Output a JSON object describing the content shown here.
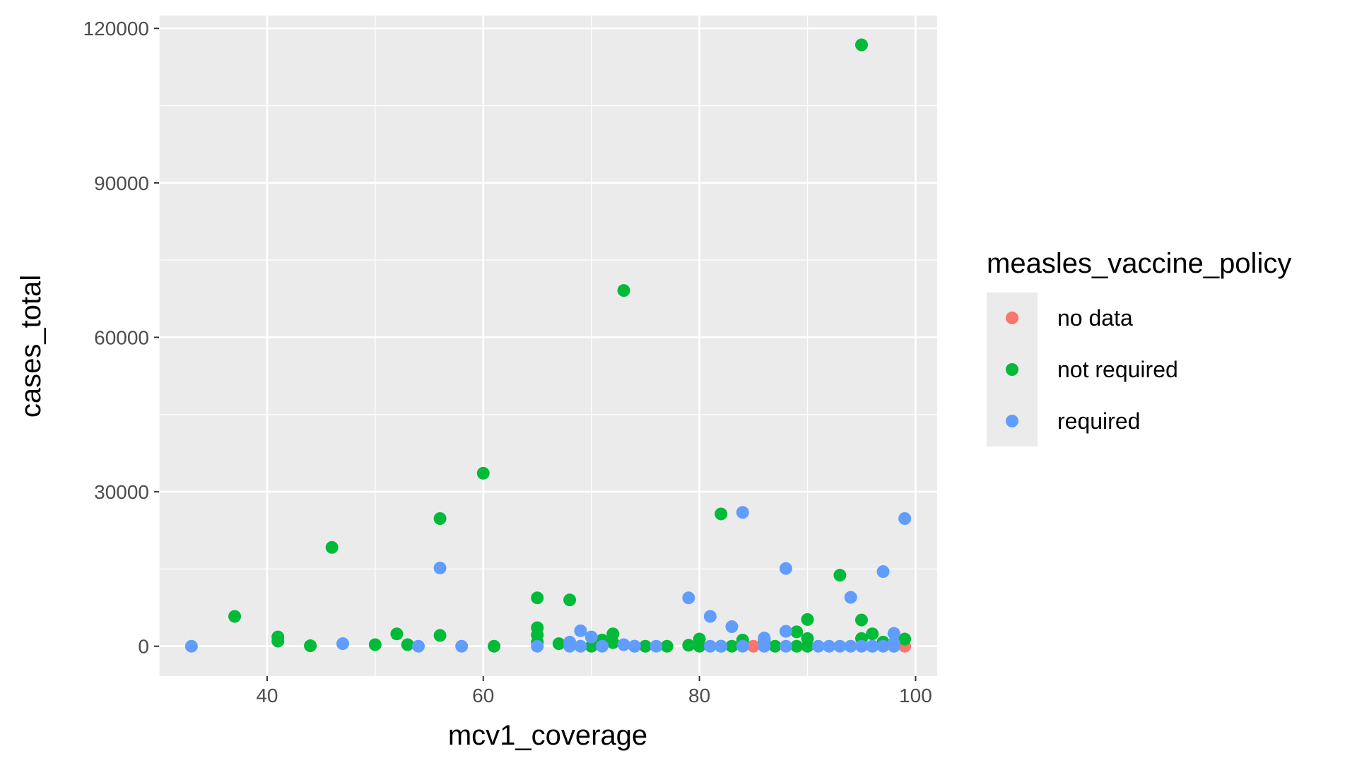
{
  "chart_data": {
    "type": "scatter",
    "xlabel": "mcv1_coverage",
    "ylabel": "cases_total",
    "xlim": [
      30,
      102
    ],
    "ylim": [
      -5800,
      122500
    ],
    "x_ticks": [
      40,
      60,
      80,
      100
    ],
    "y_ticks": [
      0,
      30000,
      60000,
      90000,
      120000
    ],
    "x_tick_labels": [
      "40",
      "60",
      "80",
      "100"
    ],
    "y_tick_labels": [
      "0",
      "30000",
      "60000",
      "90000",
      "120000"
    ],
    "grid": true,
    "background": "#ebebeb",
    "legend": {
      "title": "measles_vaccine_policy",
      "placement": "right",
      "entries": [
        "no data",
        "not required",
        "required"
      ]
    },
    "series": [
      {
        "name": "no data",
        "color": "#f8766d",
        "points": [
          [
            85,
            0
          ],
          [
            99,
            0
          ]
        ]
      },
      {
        "name": "not required",
        "color": "#00ba38",
        "points": [
          [
            37,
            5800
          ],
          [
            41,
            1800
          ],
          [
            41,
            1000
          ],
          [
            44,
            100
          ],
          [
            46,
            19200
          ],
          [
            50,
            300
          ],
          [
            52,
            2400
          ],
          [
            53,
            300
          ],
          [
            56,
            24800
          ],
          [
            56,
            2100
          ],
          [
            60,
            33600
          ],
          [
            61,
            0
          ],
          [
            65,
            9400
          ],
          [
            65,
            3600
          ],
          [
            65,
            2200
          ],
          [
            65,
            800
          ],
          [
            67,
            500
          ],
          [
            68,
            9000
          ],
          [
            70,
            0
          ],
          [
            71,
            1200
          ],
          [
            72,
            2400
          ],
          [
            72,
            700
          ],
          [
            73,
            69100
          ],
          [
            74,
            0
          ],
          [
            75,
            0
          ],
          [
            77,
            0
          ],
          [
            79,
            200
          ],
          [
            80,
            1400
          ],
          [
            80,
            0
          ],
          [
            82,
            25700
          ],
          [
            82,
            0
          ],
          [
            83,
            0
          ],
          [
            84,
            1200
          ],
          [
            86,
            1300
          ],
          [
            87,
            0
          ],
          [
            89,
            2800
          ],
          [
            89,
            0
          ],
          [
            90,
            5200
          ],
          [
            90,
            1500
          ],
          [
            90,
            0
          ],
          [
            93,
            13800
          ],
          [
            95,
            116800
          ],
          [
            95,
            5100
          ],
          [
            95,
            1500
          ],
          [
            96,
            2400
          ],
          [
            96,
            0
          ],
          [
            97,
            800
          ],
          [
            98,
            0
          ],
          [
            99,
            1400
          ]
        ]
      },
      {
        "name": "required",
        "color": "#619cff",
        "points": [
          [
            33,
            0
          ],
          [
            47,
            500
          ],
          [
            54,
            0
          ],
          [
            56,
            15200
          ],
          [
            58,
            0
          ],
          [
            65,
            0
          ],
          [
            68,
            800
          ],
          [
            68,
            0
          ],
          [
            69,
            3000
          ],
          [
            69,
            0
          ],
          [
            70,
            1800
          ],
          [
            71,
            0
          ],
          [
            73,
            300
          ],
          [
            74,
            0
          ],
          [
            76,
            0
          ],
          [
            79,
            9400
          ],
          [
            81,
            5800
          ],
          [
            81,
            0
          ],
          [
            82,
            0
          ],
          [
            83,
            3800
          ],
          [
            84,
            26000
          ],
          [
            84,
            0
          ],
          [
            86,
            1600
          ],
          [
            86,
            0
          ],
          [
            88,
            15100
          ],
          [
            88,
            2900
          ],
          [
            88,
            0
          ],
          [
            91,
            0
          ],
          [
            92,
            0
          ],
          [
            93,
            0
          ],
          [
            94,
            9500
          ],
          [
            94,
            0
          ],
          [
            95,
            0
          ],
          [
            96,
            0
          ],
          [
            97,
            14500
          ],
          [
            97,
            0
          ],
          [
            98,
            2500
          ],
          [
            98,
            600
          ],
          [
            98,
            0
          ],
          [
            99,
            24800
          ]
        ]
      }
    ]
  }
}
